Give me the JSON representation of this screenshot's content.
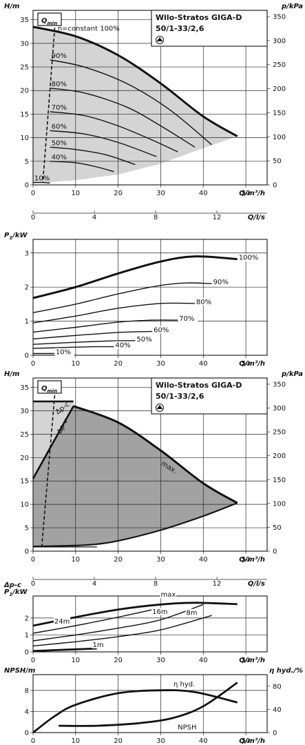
{
  "product": {
    "name": "Wilo-Stratos GIGA-D",
    "model": "50/1-33/2,6"
  },
  "chart_data": [
    {
      "id": "hq_speed",
      "type": "line",
      "xlabel": "Q/m³/h",
      "ylabel": "H/m",
      "y2label": "p/kPa",
      "xlim": [
        0,
        55
      ],
      "ylim": [
        0,
        37
      ],
      "x_ticks": [
        0,
        10,
        20,
        30,
        40,
        50
      ],
      "y_ticks": [
        0,
        5,
        10,
        15,
        20,
        25,
        30,
        35
      ],
      "y2_ticks": [
        0,
        50,
        100,
        150,
        200,
        250,
        300,
        350
      ],
      "x2label": "Q/l/s",
      "x2_ticks": [
        0,
        4,
        8,
        12
      ],
      "grid": true,
      "qmin_label": "Q",
      "qmin_sub": "min",
      "annotations": [
        "n=constant 100%"
      ],
      "series": [
        {
          "name": "100%",
          "x": [
            0,
            10,
            20,
            30,
            40,
            48
          ],
          "y": [
            33.5,
            31.5,
            27.5,
            21.5,
            14.5,
            10.3
          ]
        },
        {
          "name": "90%",
          "x": [
            4,
            12,
            22,
            32,
            42
          ],
          "y": [
            26.5,
            25,
            21.5,
            16,
            8.5
          ]
        },
        {
          "name": "80%",
          "x": [
            4,
            12,
            22,
            30,
            38
          ],
          "y": [
            20.5,
            19.5,
            16.5,
            12.5,
            8
          ]
        },
        {
          "name": "70%",
          "x": [
            4,
            12,
            20,
            28,
            34
          ],
          "y": [
            15.5,
            14.7,
            12.5,
            9.5,
            7
          ]
        },
        {
          "name": "60%",
          "x": [
            4,
            12,
            20,
            29
          ],
          "y": [
            11.5,
            10.8,
            9,
            6
          ]
        },
        {
          "name": "50%",
          "x": [
            4,
            10,
            17,
            24
          ],
          "y": [
            8,
            7.5,
            6.4,
            4.3
          ]
        },
        {
          "name": "40%",
          "x": [
            4,
            10,
            15,
            19
          ],
          "y": [
            5,
            4.7,
            3.8,
            2.8
          ]
        },
        {
          "name": "10%",
          "x": [
            0,
            2,
            4
          ],
          "y": [
            0.5,
            0.5,
            0.4
          ]
        }
      ],
      "label_series": [
        "90%",
        "80%",
        "70%",
        "60%",
        "50%",
        "40%",
        "10%"
      ]
    },
    {
      "id": "p1_speed",
      "type": "line",
      "xlabel": "Q/m³/h",
      "ylabel": "P",
      "ylabel_sub": "1",
      "ylabel_unit": "/kW",
      "xlim": [
        0,
        55
      ],
      "ylim": [
        0,
        3.4
      ],
      "x_ticks": [
        0,
        10,
        20,
        30,
        40,
        50
      ],
      "y_ticks": [
        0,
        1,
        2,
        3
      ],
      "grid": true,
      "series": [
        {
          "name": "100%",
          "x": [
            0,
            10,
            20,
            30,
            38,
            48
          ],
          "y": [
            1.68,
            2.0,
            2.4,
            2.75,
            2.9,
            2.82
          ]
        },
        {
          "name": "90%",
          "x": [
            0,
            10,
            20,
            30,
            36,
            42
          ],
          "y": [
            1.25,
            1.5,
            1.8,
            2.05,
            2.12,
            2.1
          ]
        },
        {
          "name": "80%",
          "x": [
            0,
            10,
            20,
            30,
            38
          ],
          "y": [
            0.95,
            1.15,
            1.38,
            1.52,
            1.52
          ]
        },
        {
          "name": "70%",
          "x": [
            0,
            10,
            20,
            28,
            34
          ],
          "y": [
            0.68,
            0.82,
            0.97,
            1.03,
            1.03
          ]
        },
        {
          "name": "60%",
          "x": [
            0,
            10,
            20,
            28
          ],
          "y": [
            0.48,
            0.58,
            0.67,
            0.7
          ]
        },
        {
          "name": "50%",
          "x": [
            0,
            10,
            18,
            24
          ],
          "y": [
            0.32,
            0.38,
            0.42,
            0.43
          ]
        },
        {
          "name": "40%",
          "x": [
            0,
            8,
            14,
            19
          ],
          "y": [
            0.2,
            0.23,
            0.25,
            0.25
          ]
        },
        {
          "name": "10%",
          "x": [
            0,
            2,
            5
          ],
          "y": [
            0.05,
            0.05,
            0.05
          ]
        }
      ]
    },
    {
      "id": "hq_dp",
      "type": "area",
      "xlabel": "Q/m³/h",
      "ylabel": "H/m",
      "y2label": "p/kPa",
      "xlim": [
        0,
        55
      ],
      "ylim": [
        0,
        37
      ],
      "x_ticks": [
        0,
        10,
        20,
        30,
        40,
        50
      ],
      "y_ticks": [
        0,
        5,
        10,
        15,
        20,
        25,
        30,
        35
      ],
      "y2_ticks": [
        0,
        50,
        100,
        150,
        200,
        250,
        300,
        350
      ],
      "x2label": "Q/l/s",
      "x2_ticks": [
        0,
        4,
        8,
        12
      ],
      "grid": true,
      "qmin_label": "Q",
      "qmin_sub": "min",
      "annotations": [
        "Δp-c",
        "Δp-v",
        "max."
      ],
      "series": [
        {
          "name": "max.",
          "x": [
            9.5,
            20,
            30,
            40,
            48
          ],
          "y": [
            31,
            27.5,
            21.5,
            14.5,
            10.3
          ]
        },
        {
          "name": "Δp-v",
          "x": [
            0,
            9.5
          ],
          "y": [
            15.5,
            31
          ]
        },
        {
          "name": "Δp-c",
          "x": [
            0,
            9.5
          ],
          "y": [
            32,
            32
          ]
        },
        {
          "name": "min",
          "x": [
            0,
            10,
            15,
            20,
            30,
            40,
            48
          ],
          "y": [
            1.0,
            1.2,
            1.5,
            2.2,
            4.5,
            7.5,
            10.3
          ]
        }
      ]
    },
    {
      "id": "p1_dp",
      "type": "line",
      "xlabel": "Q/m³/h",
      "ylabel": "P",
      "ylabel_sub": "1",
      "ylabel_unit": "/kW",
      "ylabel_top": "Δp-c",
      "xlim": [
        0,
        55
      ],
      "ylim": [
        0,
        3.3
      ],
      "x_ticks": [
        0,
        10,
        20,
        30,
        40,
        50
      ],
      "y_ticks": [
        0,
        1,
        2
      ],
      "grid": true,
      "series": [
        {
          "name": "max.",
          "x": [
            0,
            10,
            20,
            30,
            38,
            48
          ],
          "y": [
            1.55,
            2.05,
            2.5,
            2.8,
            2.9,
            2.82
          ]
        },
        {
          "name": "24m",
          "x": [
            0,
            10,
            20,
            30
          ],
          "y": [
            1.1,
            1.55,
            2.05,
            2.6
          ]
        },
        {
          "name": "16m",
          "x": [
            0,
            10,
            20,
            30,
            40
          ],
          "y": [
            0.65,
            1.0,
            1.4,
            1.9,
            2.8
          ]
        },
        {
          "name": "8m",
          "x": [
            0,
            10,
            20,
            30,
            42
          ],
          "y": [
            0.35,
            0.6,
            0.9,
            1.3,
            2.15
          ]
        },
        {
          "name": "1m",
          "x": [
            0,
            5,
            10,
            15
          ],
          "y": [
            0.05,
            0.1,
            0.15,
            0.2
          ]
        }
      ]
    },
    {
      "id": "npsh_eta",
      "type": "line",
      "xlabel": "Q/m³/h",
      "ylabel": "NPSH/m",
      "y2label": "η hyd./%",
      "xlim": [
        0,
        55
      ],
      "ylim": [
        0,
        11
      ],
      "y2lim": [
        0,
        100
      ],
      "x_ticks": [
        0,
        10,
        20,
        30,
        40,
        50
      ],
      "y_ticks": [
        0,
        4,
        8
      ],
      "y2_ticks": [
        0,
        40,
        80
      ],
      "grid": true,
      "series": [
        {
          "name": "η hyd.",
          "axis": "right",
          "x": [
            0,
            5,
            10,
            20,
            30,
            38,
            48
          ],
          "y": [
            0,
            28,
            48,
            68,
            73,
            70,
            52
          ]
        },
        {
          "name": "NPSH",
          "axis": "left",
          "x": [
            6,
            15,
            25,
            33,
            40,
            48
          ],
          "y": [
            1.3,
            1.3,
            1.8,
            2.8,
            5,
            9.5
          ]
        }
      ]
    }
  ]
}
